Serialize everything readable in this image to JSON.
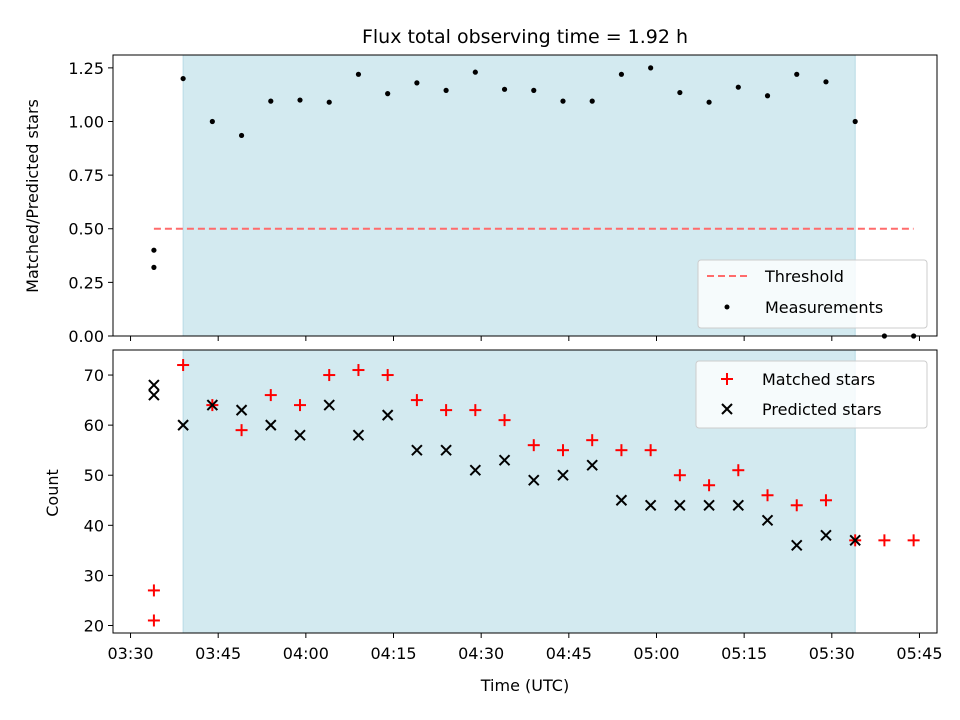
{
  "chart_data": [
    {
      "type": "scatter",
      "title": "Flux total observing time = 1.92 h",
      "xlabel": "",
      "ylabel": "Matched/Predicted stars",
      "xlim": [
        "03:27",
        "05:48"
      ],
      "ylim": [
        0,
        1.31
      ],
      "yticks": [
        "0.00",
        "0.25",
        "0.50",
        "0.75",
        "1.00",
        "1.25"
      ],
      "shaded_interval": [
        "03:39",
        "05:34"
      ],
      "legend_position": "lower-right",
      "threshold": {
        "name": "Threshold",
        "value": 0.5,
        "x_start": "03:34",
        "x_end": "05:44",
        "color": "#ff6b6b"
      },
      "series": [
        {
          "name": "Measurements",
          "marker": "dot",
          "color": "#000000",
          "x": [
            "03:34",
            "03:34",
            "03:39",
            "03:44",
            "03:49",
            "03:54",
            "03:59",
            "04:04",
            "04:09",
            "04:14",
            "04:19",
            "04:24",
            "04:29",
            "04:34",
            "04:39",
            "04:44",
            "04:49",
            "04:54",
            "04:59",
            "05:04",
            "05:09",
            "05:14",
            "05:19",
            "05:24",
            "05:29",
            "05:34",
            "05:39",
            "05:44"
          ],
          "y": [
            0.32,
            0.4,
            1.2,
            1.0,
            0.935,
            1.095,
            1.1,
            1.09,
            1.22,
            1.13,
            1.18,
            1.145,
            1.23,
            1.15,
            1.145,
            1.095,
            1.095,
            1.22,
            1.25,
            1.135,
            1.09,
            1.16,
            1.12,
            1.22,
            1.185,
            1.0,
            0.0,
            0.0
          ]
        }
      ]
    },
    {
      "type": "scatter",
      "title": "",
      "xlabel": "Time (UTC)",
      "ylabel": "Count",
      "xlim": [
        "03:27",
        "05:48"
      ],
      "ylim": [
        18.5,
        75
      ],
      "yticks": [
        "20",
        "30",
        "40",
        "50",
        "60",
        "70"
      ],
      "xticks": [
        "03:30",
        "03:45",
        "04:00",
        "04:15",
        "04:30",
        "04:45",
        "05:00",
        "05:15",
        "05:30",
        "05:45"
      ],
      "shaded_interval": [
        "03:39",
        "05:34"
      ],
      "legend_position": "upper-right",
      "series": [
        {
          "name": "Matched stars",
          "marker": "plus",
          "color": "#ff0000",
          "x": [
            "03:34",
            "03:34",
            "03:39",
            "03:44",
            "03:49",
            "03:54",
            "03:59",
            "04:04",
            "04:09",
            "04:14",
            "04:19",
            "04:24",
            "04:29",
            "04:34",
            "04:39",
            "04:44",
            "04:49",
            "04:54",
            "04:59",
            "05:04",
            "05:09",
            "05:14",
            "05:19",
            "05:24",
            "05:29",
            "05:34",
            "05:39",
            "05:44"
          ],
          "y": [
            21,
            27,
            72,
            64,
            59,
            66,
            64,
            70,
            71,
            70,
            65,
            63,
            63,
            61,
            56,
            55,
            57,
            55,
            55,
            50,
            48,
            51,
            46,
            44,
            45,
            37,
            37,
            37
          ]
        },
        {
          "name": "Predicted stars",
          "marker": "x",
          "color": "#000000",
          "x": [
            "03:34",
            "03:34",
            "03:39",
            "03:44",
            "03:49",
            "03:54",
            "03:59",
            "04:04",
            "04:09",
            "04:14",
            "04:19",
            "04:24",
            "04:29",
            "04:34",
            "04:39",
            "04:44",
            "04:49",
            "04:54",
            "04:59",
            "05:04",
            "05:09",
            "05:14",
            "05:19",
            "05:24",
            "05:29",
            "05:34"
          ],
          "y": [
            66,
            68,
            60,
            64,
            63,
            60,
            58,
            64,
            58,
            62,
            55,
            55,
            51,
            53,
            49,
            50,
            52,
            45,
            44,
            44,
            44,
            44,
            41,
            36,
            38,
            37
          ]
        }
      ]
    }
  ],
  "colors": {
    "shade": "#d3eaf0",
    "shade_edge": "#b7dbe5"
  }
}
